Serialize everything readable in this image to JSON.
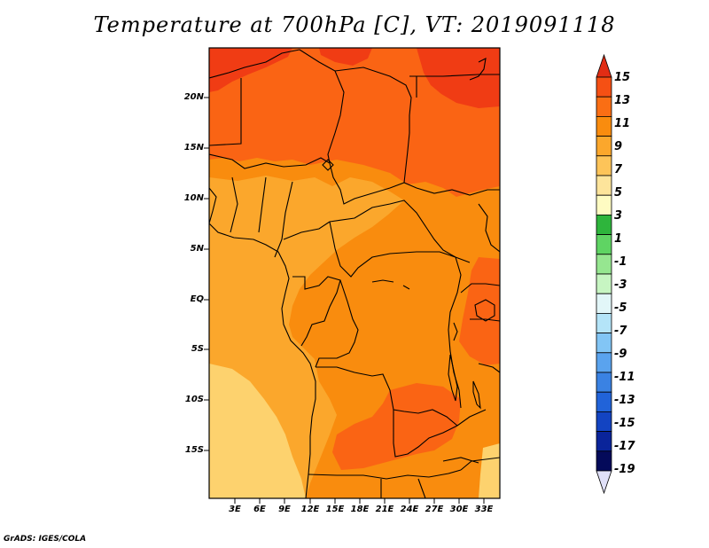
{
  "title": "Temperature at 700hPa [C], VT: 2019091118",
  "credit": "GrADS: IGES/COLA",
  "map": {
    "lat_labels": [
      "20N",
      "15N",
      "10N",
      "5N",
      "EQ",
      "5S",
      "10S",
      "15S"
    ],
    "lon_labels": [
      "3E",
      "6E",
      "9E",
      "12E",
      "15E",
      "18E",
      "21E",
      "24E",
      "27E",
      "30E",
      "33E"
    ],
    "field_colors": {
      "c13_15": "#f03c14",
      "c11_13": "#fa6414",
      "c9_11": "#f98c0e",
      "c7_9": "#fba72c",
      "c5_7": "#fdd26e",
      "coastline": "#000000"
    }
  },
  "colorbar": {
    "labels": [
      "15",
      "13",
      "11",
      "9",
      "7",
      "5",
      "3",
      "1",
      "-1",
      "-3",
      "-5",
      "-7",
      "-9",
      "-11",
      "-13",
      "-15",
      "-17",
      "-19"
    ],
    "colors": [
      "#e12d14",
      "#f55014",
      "#fa6e14",
      "#f98c0e",
      "#fba72c",
      "#fdc459",
      "#fde49b",
      "#fefbc2",
      "#2eb53c",
      "#5fd463",
      "#96e690",
      "#c7f5c2",
      "#e2f6f8",
      "#b4e4f8",
      "#82c5f5",
      "#5aa3ee",
      "#3a82e3",
      "#2163d9",
      "#1344c2",
      "#0a249a",
      "#040a5a",
      "#e0e0f8"
    ]
  }
}
